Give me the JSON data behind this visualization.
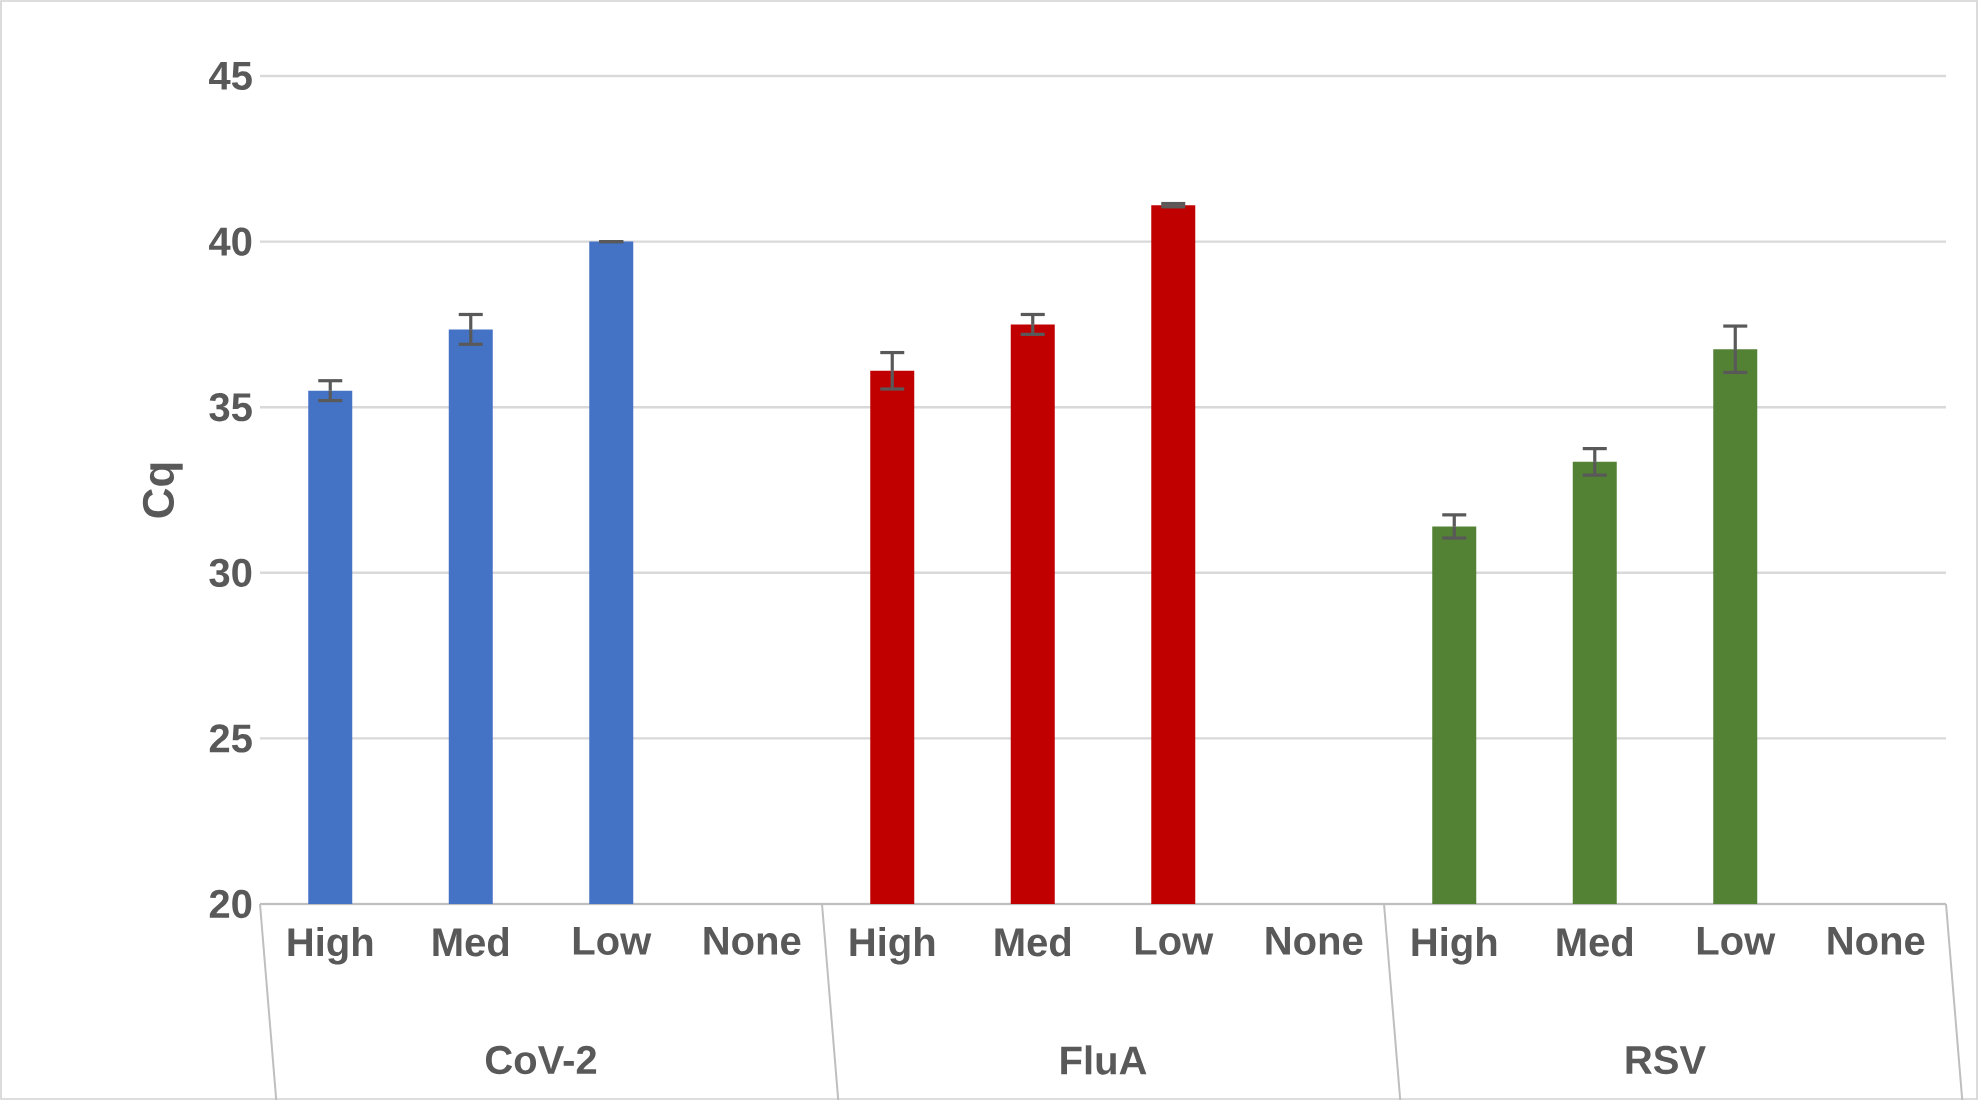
{
  "chart_data": {
    "type": "bar",
    "ylabel": "Cq",
    "categories": [
      "High",
      "Med",
      "Low",
      "None",
      "High",
      "Med",
      "Low",
      "None",
      "High",
      "Med",
      "Low",
      "None"
    ],
    "values": [
      35.5,
      37.35,
      40.0,
      null,
      36.1,
      37.5,
      41.1,
      null,
      31.4,
      33.35,
      36.75,
      null
    ],
    "errors": [
      0.3,
      0.45,
      0,
      null,
      0.55,
      0.3,
      0.05,
      null,
      0.35,
      0.4,
      0.7,
      null
    ],
    "colors": [
      "#4472c4",
      "#4472c4",
      "#4472c4",
      "#4472c4",
      "#c00000",
      "#c00000",
      "#c00000",
      "#c00000",
      "#548235",
      "#548235",
      "#548235",
      "#548235"
    ],
    "annotations": [
      "CoV-2",
      "FluA",
      "RSV"
    ],
    "ylim": [
      20,
      45
    ],
    "yticks": [
      20,
      25,
      30,
      35,
      40,
      45
    ],
    "grid": "y"
  }
}
